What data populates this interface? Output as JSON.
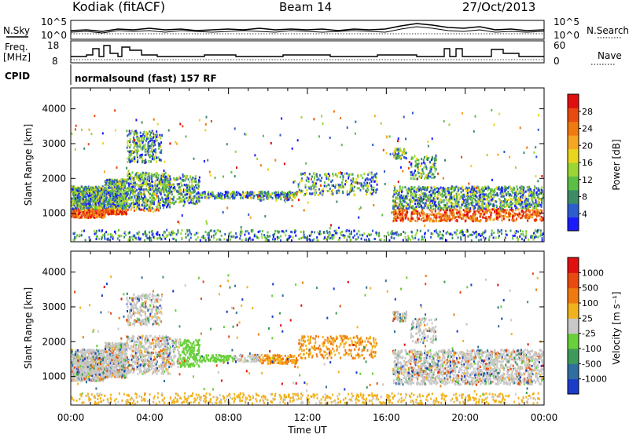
{
  "header": {
    "station": "Kodiak (fitACF)",
    "beam": "Beam 14",
    "date": "27/Oct/2013"
  },
  "panels": {
    "nsky": {
      "label": "N.Sky",
      "right_label": "N.Search",
      "ticks": [
        "10^5",
        "10^0"
      ]
    },
    "freq": {
      "label_top": "Freq.",
      "label_unit": "[MHz]",
      "ticks_left": [
        "18",
        "8"
      ],
      "ticks_right": [
        "60",
        "0"
      ],
      "right_label": "Nave"
    },
    "cpid": {
      "label": "CPID",
      "text": "normalsound (fast) 157 RF"
    }
  },
  "chart_data": [
    {
      "type": "heatmap",
      "title": "",
      "xlabel": "",
      "ylabel": "Slant Range [km]",
      "x_ticks": [
        "00:00",
        "04:00",
        "08:00",
        "12:00",
        "16:00",
        "20:00",
        "00:00"
      ],
      "y_ticks": [
        "1000",
        "2000",
        "3000",
        "4000"
      ],
      "xlim": [
        0,
        24
      ],
      "ylim": [
        180,
        4600
      ],
      "colorbar": {
        "label": "Power [dB]",
        "ticks": [
          "4",
          "8",
          "12",
          "16",
          "20",
          "24",
          "28"
        ],
        "colors": [
          "#1a1aff",
          "#2d5ccf",
          "#3d8c66",
          "#5cbf45",
          "#9bd634",
          "#e8d61e",
          "#f5a623",
          "#f07a10",
          "#e84a10",
          "#e01010"
        ]
      }
    },
    {
      "type": "heatmap",
      "title": "",
      "xlabel": "Time UT",
      "ylabel": "Slant Range [km]",
      "x_ticks": [
        "00:00",
        "04:00",
        "08:00",
        "12:00",
        "16:00",
        "20:00",
        "00:00"
      ],
      "y_ticks": [
        "1000",
        "2000",
        "3000",
        "4000"
      ],
      "xlim": [
        0,
        24
      ],
      "ylim": [
        180,
        4600
      ],
      "colorbar": {
        "label": "Velocity [m s⁻¹]",
        "ticks": [
          "1000",
          "500",
          "100",
          "25",
          "-25",
          "-100",
          "-500",
          "-1000"
        ],
        "colors": [
          "#1a3cc8",
          "#2f6e9e",
          "#3d9a5a",
          "#69cf3a",
          "#c8c8c8",
          "#f2b21e",
          "#f07a10",
          "#e84a10",
          "#e01010"
        ]
      }
    }
  ]
}
